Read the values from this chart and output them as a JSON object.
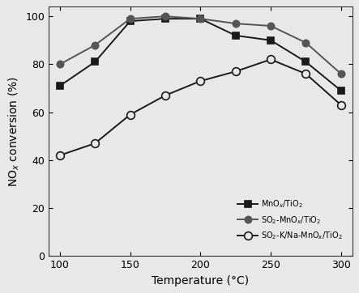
{
  "temperature": [
    100,
    125,
    150,
    175,
    200,
    225,
    250,
    275,
    300
  ],
  "series": [
    {
      "label": "MnO$_x$/TiO$_2$",
      "values": [
        71,
        81,
        98,
        99,
        99,
        92,
        90,
        81,
        69
      ],
      "marker": "s",
      "color": "#1a1a1a",
      "markerface": "#1a1a1a",
      "markersize": 6
    },
    {
      "label": "SO$_2$-MnO$_x$/TiO$_2$",
      "values": [
        80,
        88,
        99,
        100,
        99,
        97,
        96,
        89,
        76
      ],
      "marker": "o",
      "color": "#555555",
      "markerface": "#555555",
      "markersize": 6
    },
    {
      "label": "SO$_2$-K/Na-MnO$_x$/TiO$_2$",
      "values": [
        42,
        47,
        59,
        67,
        73,
        77,
        82,
        76,
        63
      ],
      "marker": "o",
      "color": "#1a1a1a",
      "markerface": "#e8e8e8",
      "markersize": 7
    }
  ],
  "xlabel": "Temperature (°C)",
  "ylabel": "NO$_x$ conversion (%)",
  "xlim": [
    92,
    308
  ],
  "ylim": [
    0,
    104
  ],
  "xticks": [
    100,
    150,
    200,
    250,
    300
  ],
  "yticks": [
    0,
    20,
    40,
    60,
    80,
    100
  ],
  "plot_bg_color": "#e8e8e8",
  "fig_bg_color": "#e8e8e8",
  "linewidth": 1.4,
  "legend_fontsize": 7,
  "axis_fontsize": 10,
  "tick_fontsize": 9
}
